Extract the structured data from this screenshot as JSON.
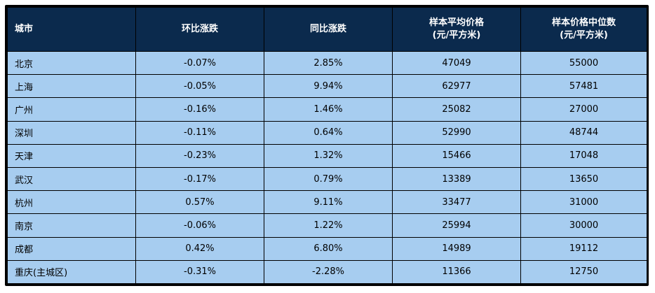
{
  "table": {
    "headers": [
      {
        "line1": "城市",
        "line2": ""
      },
      {
        "line1": "环比涨跌",
        "line2": ""
      },
      {
        "line1": "同比涨跌",
        "line2": ""
      },
      {
        "line1": "样本平均价格",
        "line2": "(元/平方米)"
      },
      {
        "line1": "样本价格中位数",
        "line2": "(元/平方米)"
      }
    ],
    "rows": [
      [
        "北京",
        "-0.07%",
        "2.85%",
        "47049",
        "55000"
      ],
      [
        "上海",
        "-0.05%",
        "9.94%",
        "62977",
        "57481"
      ],
      [
        "广州",
        "-0.16%",
        "1.46%",
        "25082",
        "27000"
      ],
      [
        "深圳",
        "-0.11%",
        "0.64%",
        "52990",
        "48744"
      ],
      [
        "天津",
        "-0.23%",
        "1.32%",
        "15466",
        "17048"
      ],
      [
        "武汉",
        "-0.17%",
        "0.79%",
        "13389",
        "13650"
      ],
      [
        "杭州",
        "0.57%",
        "9.11%",
        "33477",
        "31000"
      ],
      [
        "南京",
        "-0.06%",
        "1.22%",
        "25994",
        "30000"
      ],
      [
        "成都",
        "0.42%",
        "6.80%",
        "14989",
        "19112"
      ],
      [
        "重庆(主城区)",
        "-0.31%",
        "-2.28%",
        "11366",
        "12750"
      ]
    ]
  },
  "colors": {
    "header_bg": "#0b2a4d",
    "header_text": "#ffffff",
    "cell_bg": "#a7cdf0",
    "border": "#000000"
  }
}
